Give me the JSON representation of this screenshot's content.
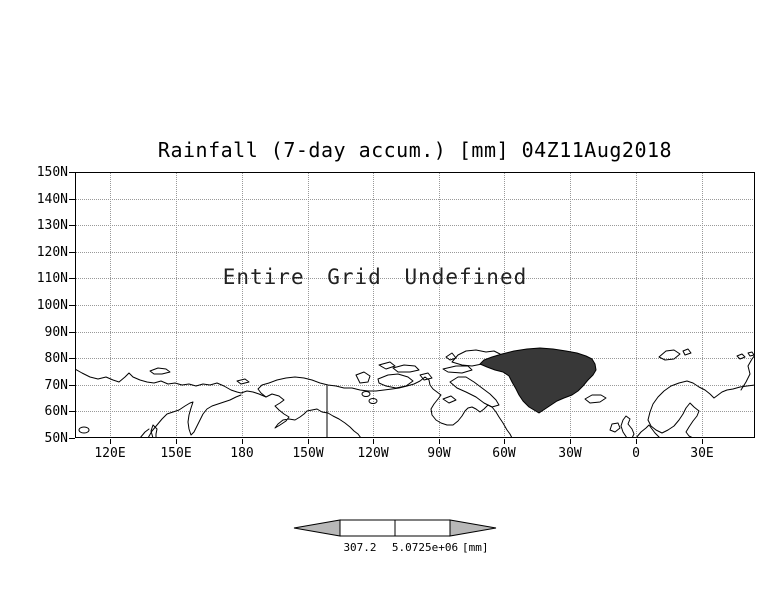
{
  "chart_data": {
    "type": "map",
    "title": "Rainfall (7-day accum.) [mm] 04Z11Aug2018",
    "projection": "latlon-cylindrical",
    "status_message": "Entire Grid Undefined",
    "grid": "dotted",
    "lat_axis": {
      "ticks": [
        "150N",
        "140N",
        "130N",
        "120N",
        "110N",
        "100N",
        "90N",
        "80N",
        "70N",
        "60N",
        "50N"
      ],
      "range": [
        150,
        50
      ]
    },
    "lon_axis": {
      "ticks": [
        "120E",
        "150E",
        "180",
        "150W",
        "120W",
        "90W",
        "60W",
        "30W",
        "0",
        "30E"
      ]
    },
    "series": [],
    "colorbar": {
      "left_value": "307.2",
      "right_value": "5.0725e+06",
      "unit": "[mm]",
      "arrow_color": "#b8b8b8"
    },
    "colors": {
      "coastline": "#000000",
      "gridline": "#999999",
      "background": "#ffffff"
    }
  }
}
